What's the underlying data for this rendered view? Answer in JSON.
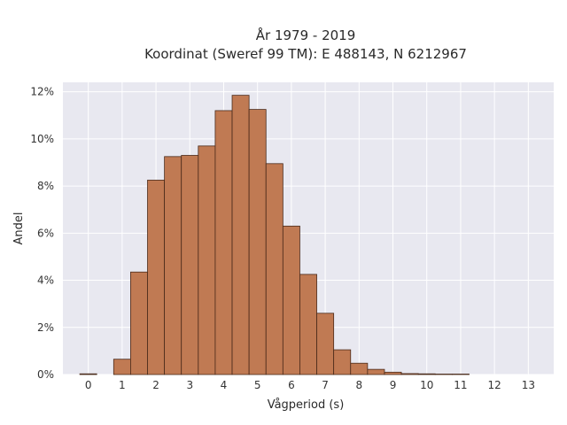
{
  "chart_data": {
    "type": "bar",
    "title_line1": "År 1979 - 2019",
    "title_line2": "Koordinat (Sweref 99 TM): E 488143, N 6212967",
    "xlabel": "Vågperiod (s)",
    "ylabel": "Andel",
    "bin_width": 0.5,
    "xlim": [
      -0.75,
      13.75
    ],
    "ylim": [
      0,
      12.4
    ],
    "x_ticks": [
      0,
      1,
      2,
      3,
      4,
      5,
      6,
      7,
      8,
      9,
      10,
      11,
      12,
      13
    ],
    "y_ticks": [
      0,
      2,
      4,
      6,
      8,
      10,
      12
    ],
    "y_tick_labels": [
      "0%",
      "2%",
      "4%",
      "6%",
      "8%",
      "10%",
      "12%"
    ],
    "bins": [
      {
        "x": 0.0,
        "value": 0.03
      },
      {
        "x": 1.0,
        "value": 0.65
      },
      {
        "x": 1.5,
        "value": 4.35
      },
      {
        "x": 2.0,
        "value": 8.25
      },
      {
        "x": 2.5,
        "value": 9.25
      },
      {
        "x": 3.0,
        "value": 9.3
      },
      {
        "x": 3.5,
        "value": 9.7
      },
      {
        "x": 4.0,
        "value": 11.2
      },
      {
        "x": 4.5,
        "value": 11.85
      },
      {
        "x": 5.0,
        "value": 11.25
      },
      {
        "x": 5.5,
        "value": 8.95
      },
      {
        "x": 6.0,
        "value": 6.3
      },
      {
        "x": 6.5,
        "value": 4.25
      },
      {
        "x": 7.0,
        "value": 2.6
      },
      {
        "x": 7.5,
        "value": 1.05
      },
      {
        "x": 8.0,
        "value": 0.48
      },
      {
        "x": 8.5,
        "value": 0.22
      },
      {
        "x": 9.0,
        "value": 0.1
      },
      {
        "x": 9.5,
        "value": 0.04
      },
      {
        "x": 10.0,
        "value": 0.03
      },
      {
        "x": 10.5,
        "value": 0.02
      },
      {
        "x": 11.0,
        "value": 0.02
      }
    ],
    "grid": true,
    "colors": {
      "bar": "#c07a53",
      "bar_edge": "#4a2a1a",
      "plot_background": "#e8e8f0",
      "grid": "#ffffff"
    }
  }
}
